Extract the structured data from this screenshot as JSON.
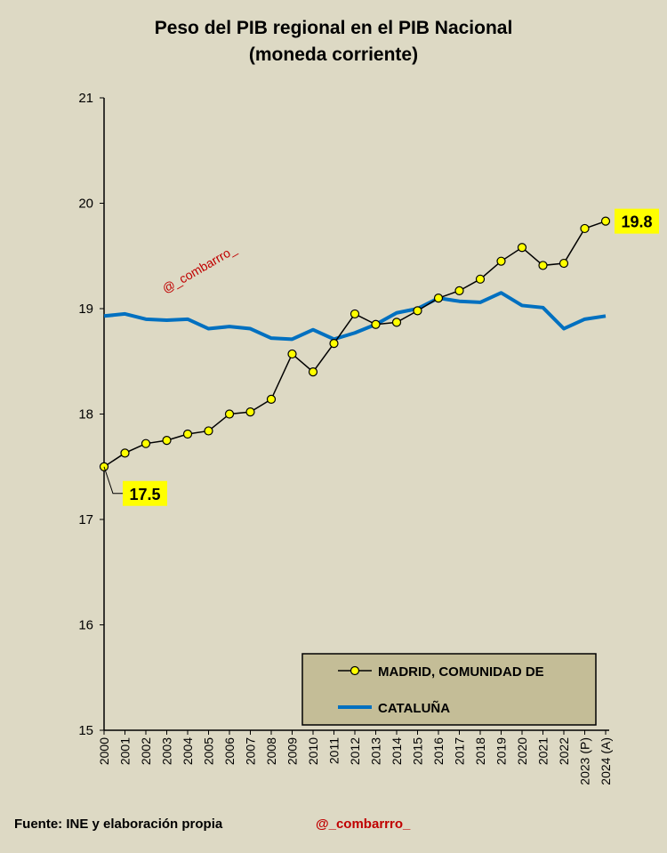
{
  "chart_data": {
    "type": "line",
    "title_line1": "Peso del PIB regional en el PIB Nacional",
    "title_line2": "(moneda corriente)",
    "categories": [
      "2000",
      "2001",
      "2002",
      "2003",
      "2004",
      "2005",
      "2006",
      "2007",
      "2008",
      "2009",
      "2010",
      "2011",
      "2012",
      "2013",
      "2014",
      "2015",
      "2016",
      "2017",
      "2018",
      "2019",
      "2020",
      "2021",
      "2022",
      "2023 (P)",
      "2024 (A)"
    ],
    "ylim": [
      15,
      21
    ],
    "yticks": [
      "15",
      "16",
      "17",
      "18",
      "19",
      "20",
      "21"
    ],
    "grid": false,
    "legend_position": "bottom-right",
    "series": [
      {
        "name": "MADRID, COMUNIDAD DE",
        "color": "#000000",
        "marker_color": "#ffff00",
        "values": [
          17.5,
          17.63,
          17.72,
          17.75,
          17.81,
          17.84,
          18.0,
          18.02,
          18.14,
          18.57,
          18.4,
          18.67,
          18.95,
          18.85,
          18.87,
          18.98,
          19.1,
          19.17,
          19.28,
          19.45,
          19.58,
          19.41,
          19.43,
          19.76,
          19.83
        ]
      },
      {
        "name": "CATALUÑA",
        "color": "#0070c0",
        "values": [
          18.93,
          18.95,
          18.9,
          18.89,
          18.9,
          18.81,
          18.83,
          18.81,
          18.72,
          18.71,
          18.8,
          18.71,
          18.77,
          18.85,
          18.96,
          19.0,
          19.1,
          19.07,
          19.06,
          19.15,
          19.03,
          19.01,
          18.81,
          18.9,
          18.93
        ]
      }
    ],
    "annotations": [
      {
        "text": "17.5",
        "series": "MADRID, COMUNIDAD DE",
        "category": "2000"
      },
      {
        "text": "19.8",
        "series": "MADRID, COMUNIDAD DE",
        "category": "2024 (A)"
      }
    ],
    "watermark": "@_combarrro_"
  },
  "footer": {
    "source": "Fuente: INE y elaboración propia",
    "handle": "@_combarrro_"
  }
}
